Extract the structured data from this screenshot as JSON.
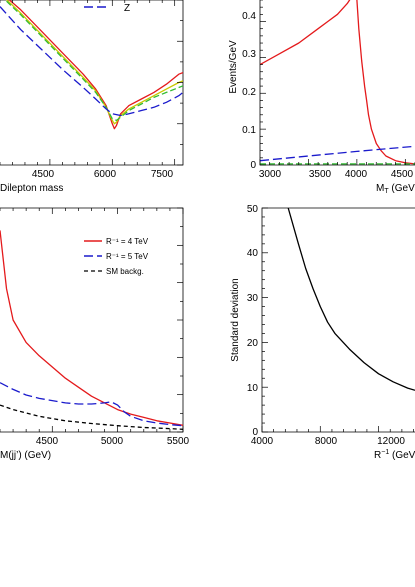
{
  "chart_data": [
    {
      "type": "line",
      "xlabel": "Dilepton mass",
      "xticks": [
        "4500",
        "6000",
        "7500"
      ],
      "xlim": [
        3300,
        7700
      ],
      "ylim": [
        0,
        1
      ],
      "legend": [
        "Z"
      ],
      "series": [
        {
          "name": "",
          "color": "#e41a1c",
          "dash": "",
          "x": [
            3300,
            3800,
            4300,
            4800,
            5300,
            5600,
            5850,
            6000,
            6050,
            6100,
            6200,
            6400,
            6700,
            7000,
            7300,
            7600,
            7700
          ],
          "y": [
            1.05,
            0.94,
            0.81,
            0.68,
            0.55,
            0.46,
            0.36,
            0.25,
            0.22,
            0.24,
            0.31,
            0.36,
            0.4,
            0.44,
            0.49,
            0.55,
            0.56
          ]
        },
        {
          "name": "",
          "color": "#c8c800",
          "dash": "",
          "x": [
            3300,
            3800,
            4300,
            4800,
            5300,
            5600,
            5850,
            6000,
            6050,
            6100,
            6200,
            6400,
            6700,
            7000,
            7300,
            7600,
            7700
          ],
          "y": [
            1.04,
            0.92,
            0.79,
            0.66,
            0.53,
            0.45,
            0.35,
            0.27,
            0.25,
            0.26,
            0.3,
            0.34,
            0.38,
            0.42,
            0.46,
            0.5,
            0.51
          ]
        },
        {
          "name": "",
          "color": "#33bb33",
          "dash": "6 3",
          "x": [
            3300,
            3800,
            4300,
            4800,
            5300,
            5600,
            5850,
            6000,
            6100,
            6200,
            6400,
            6700,
            7000,
            7300,
            7600,
            7700
          ],
          "y": [
            1.03,
            0.91,
            0.78,
            0.65,
            0.52,
            0.44,
            0.35,
            0.28,
            0.27,
            0.29,
            0.33,
            0.37,
            0.41,
            0.44,
            0.47,
            0.48
          ]
        },
        {
          "name": "Z",
          "color": "#1a1acc",
          "dash": "9 4",
          "x": [
            3300,
            3800,
            4300,
            4800,
            5300,
            5600,
            5850,
            6000,
            6200,
            6400,
            6700,
            7000,
            7300,
            7600,
            7700
          ],
          "y": [
            0.96,
            0.82,
            0.7,
            0.58,
            0.47,
            0.4,
            0.34,
            0.31,
            0.3,
            0.31,
            0.33,
            0.35,
            0.38,
            0.42,
            0.44
          ]
        }
      ]
    },
    {
      "type": "line",
      "ylabel": "Events/GeV",
      "xlabel": "M",
      "xlabel_sub": "T",
      "xlabel_unit": " (GeV",
      "xticks": [
        "3000",
        "3500",
        "4000",
        "4500"
      ],
      "yticks": [
        "0",
        "0.1",
        "0.2",
        "0.3",
        "0.4"
      ],
      "xlim": [
        3000,
        4600
      ],
      "ylim": [
        0,
        0.46
      ],
      "series": [
        {
          "name": "",
          "color": "#e41a1c",
          "dash": "",
          "x": [
            3000,
            3200,
            3400,
            3600,
            3700,
            3800,
            3900,
            3950,
            3980,
            4000,
            4020,
            4050,
            4080,
            4100,
            4120,
            4150,
            4200,
            4250,
            4300,
            4400,
            4500,
            4600
          ],
          "y": [
            0.28,
            0.31,
            0.34,
            0.38,
            0.4,
            0.42,
            0.45,
            0.47,
            0.5,
            0.46,
            0.38,
            0.29,
            0.22,
            0.18,
            0.14,
            0.1,
            0.06,
            0.04,
            0.025,
            0.012,
            0.006,
            0.003
          ]
        },
        {
          "name": "",
          "color": "#1a1acc",
          "dash": "9 4",
          "x": [
            3000,
            3500,
            4000,
            4500,
            4600
          ],
          "y": [
            0.012,
            0.025,
            0.038,
            0.05,
            0.052
          ]
        },
        {
          "name": "",
          "color": "#33bb33",
          "dash": "6 3",
          "x": [
            3000,
            3500,
            4000,
            4500,
            4600
          ],
          "y": [
            0.003,
            0.003,
            0.003,
            0.003,
            0.003
          ]
        }
      ]
    },
    {
      "type": "line",
      "xlabel": "M(jj’) (GeV)",
      "xticks": [
        "4500",
        "5000",
        "5500"
      ],
      "xlim": [
        4100,
        5500
      ],
      "ylim": [
        0,
        1
      ],
      "legend": [
        "R⁻¹ = 4 TeV",
        "R⁻¹ = 5 TeV",
        "SM backg."
      ],
      "series": [
        {
          "name": "R⁻¹ = 4 TeV",
          "color": "#e41a1c",
          "dash": "",
          "x": [
            4100,
            4150,
            4200,
            4300,
            4400,
            4500,
            4600,
            4700,
            4800,
            4900,
            5000,
            5100,
            5200,
            5300,
            5400,
            5500
          ],
          "y": [
            0.9,
            0.64,
            0.5,
            0.4,
            0.34,
            0.29,
            0.24,
            0.2,
            0.16,
            0.13,
            0.1,
            0.08,
            0.065,
            0.05,
            0.04,
            0.03
          ]
        },
        {
          "name": "R⁻¹ = 5 TeV",
          "color": "#1a1acc",
          "dash": "9 4",
          "x": [
            4100,
            4200,
            4300,
            4400,
            4500,
            4600,
            4700,
            4800,
            4900,
            4950,
            5000,
            5050,
            5100,
            5200,
            5300,
            5400,
            5500
          ],
          "y": [
            0.22,
            0.19,
            0.165,
            0.15,
            0.14,
            0.13,
            0.125,
            0.125,
            0.13,
            0.135,
            0.12,
            0.09,
            0.07,
            0.05,
            0.04,
            0.033,
            0.028
          ]
        },
        {
          "name": "SM backg.",
          "color": "#000000",
          "dash": "4 3",
          "x": [
            4100,
            4200,
            4300,
            4400,
            4500,
            4600,
            4800,
            5000,
            5200,
            5400,
            5500
          ],
          "y": [
            0.12,
            0.1,
            0.085,
            0.07,
            0.06,
            0.05,
            0.038,
            0.028,
            0.02,
            0.015,
            0.012
          ]
        }
      ]
    },
    {
      "type": "line",
      "ylabel": "Standard deviation",
      "xlabel": "R",
      "xlabel_sup": "−1",
      "xlabel_unit": " (GeV)",
      "xticks": [
        "4000",
        "8000",
        "12000"
      ],
      "yticks": [
        "0",
        "10",
        "20",
        "30",
        "40",
        "50"
      ],
      "xlim": [
        4000,
        14500
      ],
      "ylim": [
        0,
        50
      ],
      "series": [
        {
          "name": "",
          "color": "#000000",
          "dash": "",
          "x": [
            5800,
            6500,
            7000,
            7500,
            8000,
            8500,
            9000,
            10000,
            11000,
            12000,
            13000,
            14000,
            14500
          ],
          "y": [
            50,
            42,
            36.5,
            32,
            28,
            24.5,
            22,
            18.5,
            15.5,
            13,
            11.2,
            9.8,
            9.3
          ]
        }
      ]
    }
  ]
}
